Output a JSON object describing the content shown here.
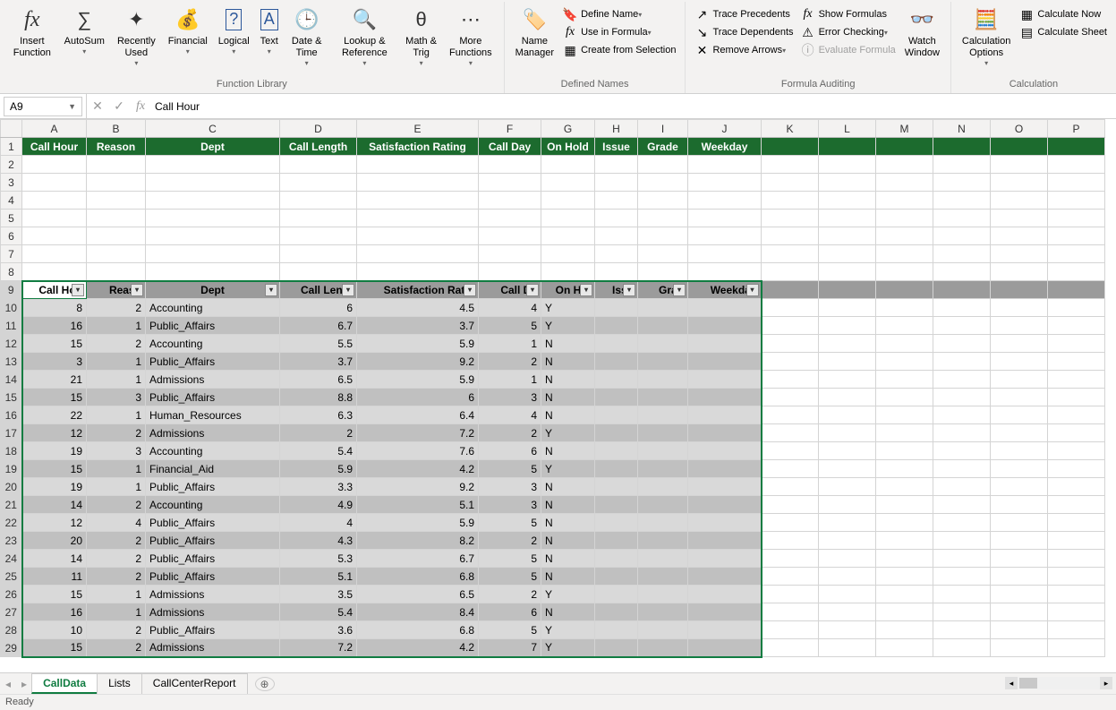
{
  "ribbon": {
    "groups": {
      "function_library": {
        "label": "Function Library",
        "buttons": {
          "insert_function": "Insert\nFunction",
          "autosum": "AutoSum",
          "recently_used": "Recently\nUsed",
          "financial": "Financial",
          "logical": "Logical",
          "text": "Text",
          "date_time": "Date &\nTime",
          "lookup_ref": "Lookup &\nReference",
          "math_trig": "Math &\nTrig",
          "more_functions": "More\nFunctions"
        }
      },
      "defined_names": {
        "label": "Defined Names",
        "name_manager": "Name\nManager",
        "define_name": "Define Name",
        "use_in_formula": "Use in Formula",
        "create_from_selection": "Create from Selection"
      },
      "formula_auditing": {
        "label": "Formula Auditing",
        "trace_precedents": "Trace Precedents",
        "trace_dependents": "Trace Dependents",
        "remove_arrows": "Remove Arrows",
        "show_formulas": "Show Formulas",
        "error_checking": "Error Checking",
        "evaluate_formula": "Evaluate Formula",
        "watch_window": "Watch\nWindow"
      },
      "calculation": {
        "label": "Calculation",
        "calculation_options": "Calculation\nOptions",
        "calculate_now": "Calculate Now",
        "calculate_sheet": "Calculate Sheet"
      }
    }
  },
  "namebox": "A9",
  "formula": "Call Hour",
  "column_letters": [
    "A",
    "B",
    "C",
    "D",
    "E",
    "F",
    "G",
    "H",
    "I",
    "J",
    "K",
    "L",
    "M",
    "N",
    "O",
    "P"
  ],
  "green_headers": [
    "Call Hour",
    "Reason",
    "Dept",
    "Call Length",
    "Satisfaction Rating",
    "Call Day",
    "On Hold",
    "Issue",
    "Grade",
    "Weekday"
  ],
  "table_headers": [
    "Call Hour",
    "Reason",
    "Dept",
    "Call Length",
    "Satisfaction Rating",
    "Call Day",
    "On Hold",
    "Issue",
    "Grade",
    "Weekday"
  ],
  "table_header_display": [
    "Call Hou",
    "Reaso",
    "Dept",
    "Call Lengt",
    "Satisfaction Ratin",
    "Call Da",
    "On Hol",
    "Issu",
    "Grad",
    "Weekday"
  ],
  "rows": [
    {
      "r": 10,
      "d": [
        8,
        2,
        "Accounting",
        6,
        4.5,
        4,
        "Y",
        "",
        "",
        ""
      ]
    },
    {
      "r": 11,
      "d": [
        16,
        1,
        "Public_Affairs",
        6.7,
        3.7,
        5,
        "Y",
        "",
        "",
        ""
      ]
    },
    {
      "r": 12,
      "d": [
        15,
        2,
        "Accounting",
        5.5,
        5.9,
        1,
        "N",
        "",
        "",
        ""
      ]
    },
    {
      "r": 13,
      "d": [
        3,
        1,
        "Public_Affairs",
        3.7,
        9.2,
        2,
        "N",
        "",
        "",
        ""
      ]
    },
    {
      "r": 14,
      "d": [
        21,
        1,
        "Admissions",
        6.5,
        5.9,
        1,
        "N",
        "",
        "",
        ""
      ]
    },
    {
      "r": 15,
      "d": [
        15,
        3,
        "Public_Affairs",
        8.8,
        6,
        3,
        "N",
        "",
        "",
        ""
      ]
    },
    {
      "r": 16,
      "d": [
        22,
        1,
        "Human_Resources",
        6.3,
        6.4,
        4,
        "N",
        "",
        "",
        ""
      ]
    },
    {
      "r": 17,
      "d": [
        12,
        2,
        "Admissions",
        2,
        7.2,
        2,
        "Y",
        "",
        "",
        ""
      ]
    },
    {
      "r": 18,
      "d": [
        19,
        3,
        "Accounting",
        5.4,
        7.6,
        6,
        "N",
        "",
        "",
        ""
      ]
    },
    {
      "r": 19,
      "d": [
        15,
        1,
        "Financial_Aid",
        5.9,
        4.2,
        5,
        "Y",
        "",
        "",
        ""
      ]
    },
    {
      "r": 20,
      "d": [
        19,
        1,
        "Public_Affairs",
        3.3,
        9.2,
        3,
        "N",
        "",
        "",
        ""
      ]
    },
    {
      "r": 21,
      "d": [
        14,
        2,
        "Accounting",
        4.9,
        5.1,
        3,
        "N",
        "",
        "",
        ""
      ]
    },
    {
      "r": 22,
      "d": [
        12,
        4,
        "Public_Affairs",
        4,
        5.9,
        5,
        "N",
        "",
        "",
        ""
      ]
    },
    {
      "r": 23,
      "d": [
        20,
        2,
        "Public_Affairs",
        4.3,
        8.2,
        2,
        "N",
        "",
        "",
        ""
      ]
    },
    {
      "r": 24,
      "d": [
        14,
        2,
        "Public_Affairs",
        5.3,
        6.7,
        5,
        "N",
        "",
        "",
        ""
      ]
    },
    {
      "r": 25,
      "d": [
        11,
        2,
        "Public_Affairs",
        5.1,
        6.8,
        5,
        "N",
        "",
        "",
        ""
      ]
    },
    {
      "r": 26,
      "d": [
        15,
        1,
        "Admissions",
        3.5,
        6.5,
        2,
        "Y",
        "",
        "",
        ""
      ]
    },
    {
      "r": 27,
      "d": [
        16,
        1,
        "Admissions",
        5.4,
        8.4,
        6,
        "N",
        "",
        "",
        ""
      ]
    },
    {
      "r": 28,
      "d": [
        10,
        2,
        "Public_Affairs",
        3.6,
        6.8,
        5,
        "Y",
        "",
        "",
        ""
      ]
    },
    {
      "r": 29,
      "d": [
        15,
        2,
        "Admissions",
        7.2,
        4.2,
        7,
        "Y",
        "",
        "",
        ""
      ]
    }
  ],
  "col_align": [
    "num",
    "num",
    "txt",
    "num",
    "num",
    "num",
    "txt",
    "txt",
    "txt",
    "txt"
  ],
  "sheet_tabs": [
    "CallData",
    "Lists",
    "CallCenterReport"
  ],
  "active_tab": 0,
  "status_text": "Ready",
  "colors": {
    "header_green": "#1c6b2e",
    "sel_green": "#107c41"
  }
}
